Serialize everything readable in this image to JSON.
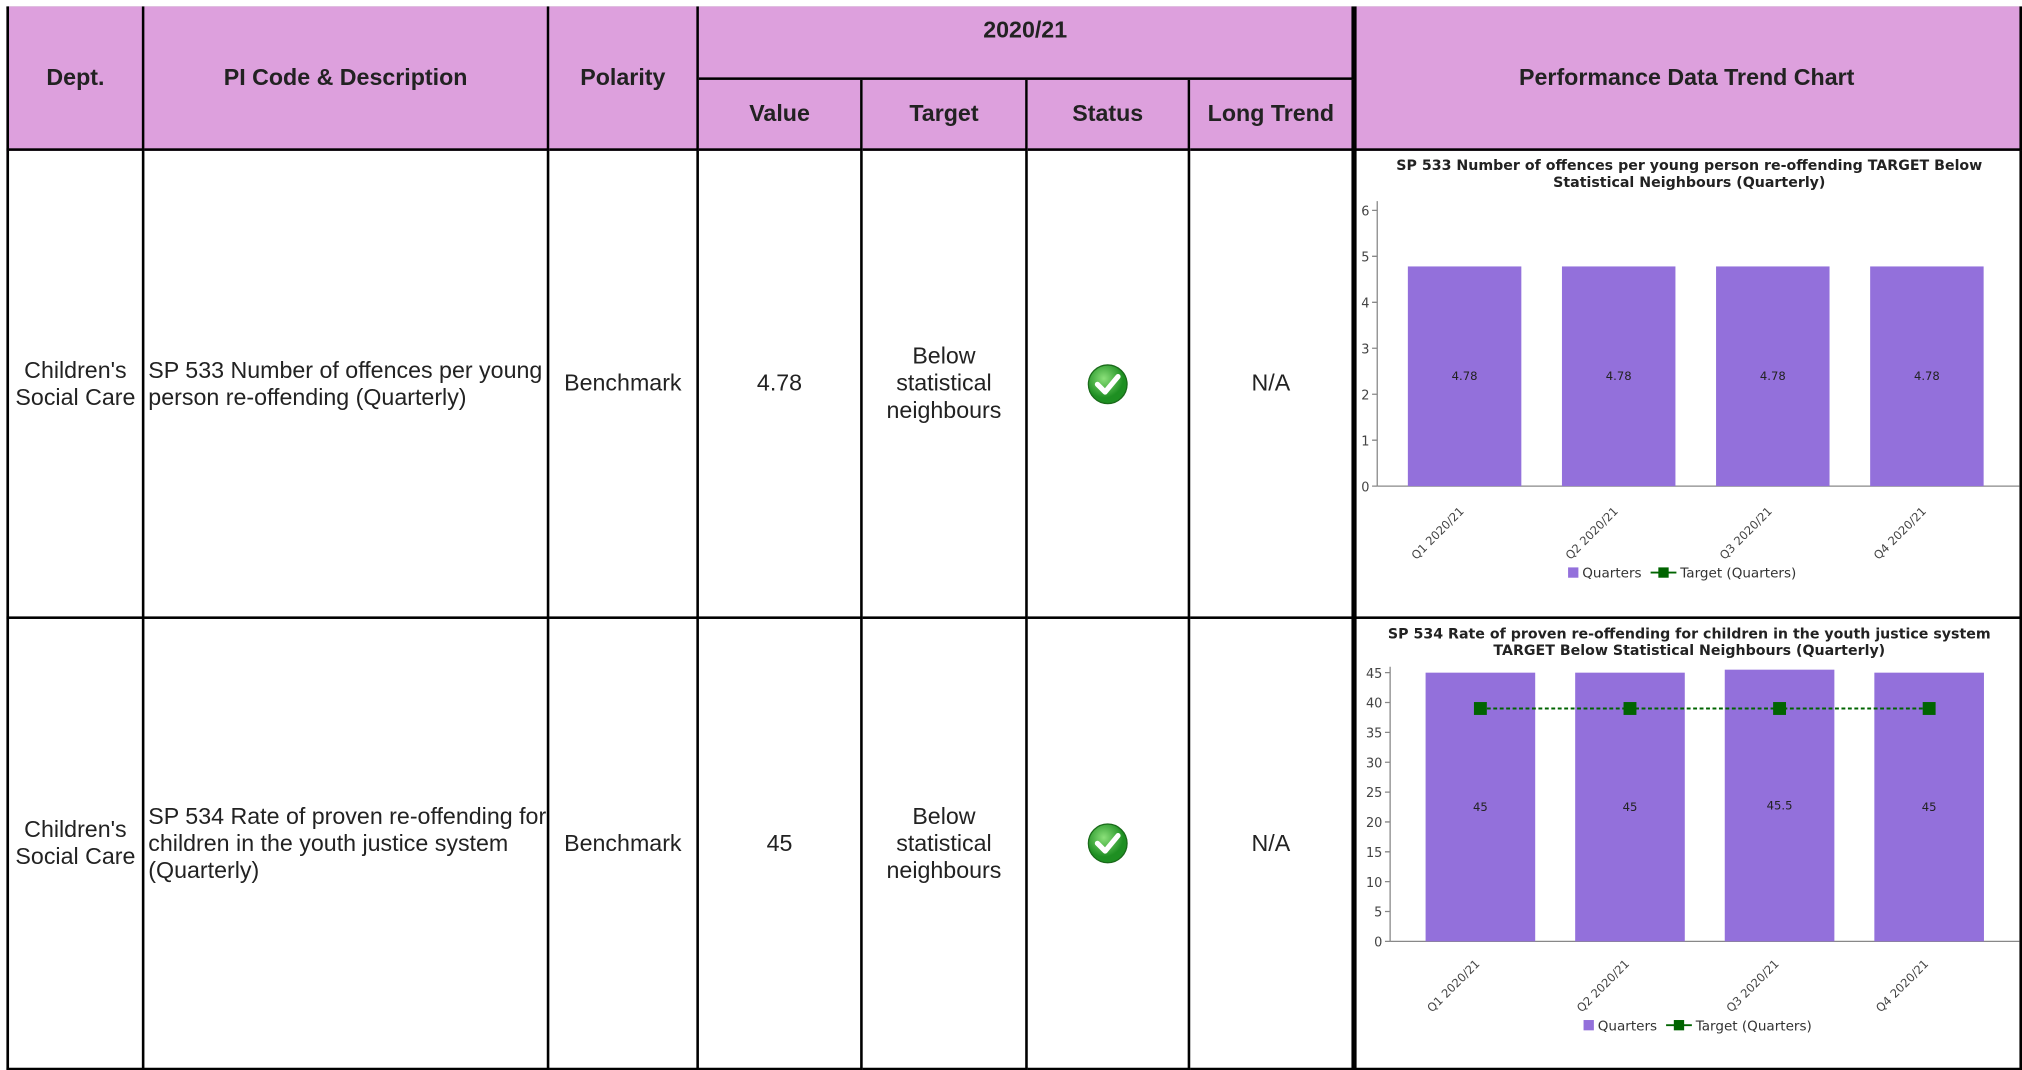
{
  "table": {
    "headers": {
      "dept": "Dept.",
      "pi": "PI Code & Description",
      "polarity": "Polarity",
      "period": "2020/21",
      "value": "Value",
      "target": "Target",
      "status": "Status",
      "long_trend": "Long Trend",
      "chart": "Performance Data Trend Chart"
    },
    "rows": [
      {
        "dept": "Children's Social Care",
        "pi": "SP 533 Number of offences per young person re-offending (Quarterly)",
        "polarity": "Benchmark",
        "value": 4.78,
        "target": "Below statistical neighbours",
        "long_trend": "N/A",
        "chart_data": {
          "type": "bar",
          "title": "SP 533 Number of offences per young person re-offending TARGET Below Statistical Neighbours (Quarterly)",
          "categories": [
            "Q1 2020/21",
            "Q2 2020/21",
            "Q3 2020/21",
            "Q4 2020/21"
          ],
          "series": [
            {
              "name": "Quarters",
              "color": "#9370db",
              "values": [
                4.78,
                4.78,
                4.78,
                4.78
              ]
            },
            {
              "name": "Target (Quarters)",
              "color": "#006400",
              "values": [
                null,
                null,
                null,
                null
              ]
            }
          ],
          "ylim": [
            0,
            6.2
          ],
          "yticks": [
            0,
            1,
            2,
            3,
            4,
            5,
            6
          ]
        }
      },
      {
        "dept": "Children's Social Care",
        "pi": "SP 534 Rate of proven re-offending for children in the youth justice system (Quarterly)",
        "polarity": "Benchmark",
        "value": 45,
        "target": "Below statistical neighbours",
        "long_trend": "N/A",
        "chart_data": {
          "type": "bar",
          "title": "SP 534 Rate of proven re-offending for children in the youth justice system TARGET Below Statistical Neighbours (Quarterly)",
          "categories": [
            "Q1 2020/21",
            "Q2 2020/21",
            "Q3 2020/21",
            "Q4 2020/21"
          ],
          "series": [
            {
              "name": "Quarters",
              "color": "#9370db",
              "values": [
                45,
                45,
                45.5,
                45
              ]
            },
            {
              "name": "Target (Quarters)",
              "color": "#006400",
              "values": [
                39,
                39,
                39,
                39
              ]
            }
          ],
          "ylim": [
            0,
            46
          ],
          "yticks": [
            0,
            5,
            10,
            15,
            20,
            25,
            30,
            35,
            40,
            45
          ]
        }
      }
    ]
  }
}
